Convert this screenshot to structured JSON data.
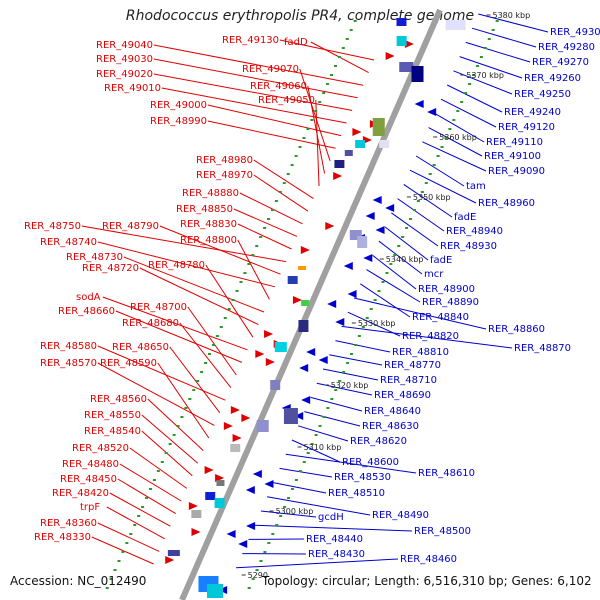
{
  "title": "Rhodococcus erythropolis PR4, complete genome",
  "accession": "Accession: NC_012490",
  "topology": "Topology: circular; Length: 6,516,310 bp; Genes: 6,102",
  "colors": {
    "forward": "#e00000",
    "reverse": "#0000cc",
    "backbone": "#a0a0a0"
  },
  "kbp_labels": [
    "5380 kbp",
    "5370 kbp",
    "5360 kbp",
    "5350 kbp",
    "5340 kbp",
    "5330 kbp",
    "5320 kbp",
    "5310 kbp",
    "5300 kbp",
    "5290"
  ],
  "left_labels": [
    "RER_49130",
    "fadD",
    "RER_49040",
    "RER_49030",
    "RER_49020",
    "RER_49010",
    "RER_49000",
    "RER_48990",
    "RER_49070",
    "RER_49060",
    "RER_49050",
    "RER_48980",
    "RER_48970",
    "RER_48880",
    "RER_48850",
    "RER_48830",
    "RER_48750",
    "RER_48790",
    "RER_48740",
    "RER_48800",
    "RER_48730",
    "RER_48720",
    "RER_48780",
    "sodA",
    "RER_48660",
    "RER_48700",
    "RER_48680",
    "RER_48580",
    "RER_48650",
    "RER_48570",
    "RER_48590",
    "RER_48560",
    "RER_48550",
    "RER_48540",
    "RER_48520",
    "RER_48480",
    "RER_48450",
    "RER_48420",
    "trpF",
    "RER_48360",
    "RER_48330"
  ],
  "right_labels": [
    "RER_49300",
    "RER_49280",
    "RER_49270",
    "RER_49260",
    "RER_49250",
    "RER_49240",
    "RER_49120",
    "RER_49110",
    "RER_49100",
    "RER_49090",
    "tam",
    "RER_48960",
    "fadE",
    "RER_48940",
    "RER_48930",
    "fadE",
    "mcr",
    "RER_48900",
    "RER_48890",
    "RER_48840",
    "RER_48860",
    "RER_48820",
    "RER_48870",
    "RER_48810",
    "RER_48770",
    "RER_48710",
    "RER_48690",
    "RER_48640",
    "RER_48630",
    "RER_48620",
    "RER_48600",
    "RER_48610",
    "RER_48530",
    "RER_48510",
    "RER_48490",
    "gcdH",
    "RER_48500",
    "RER_48440",
    "RER_48430",
    "RER_48460"
  ]
}
